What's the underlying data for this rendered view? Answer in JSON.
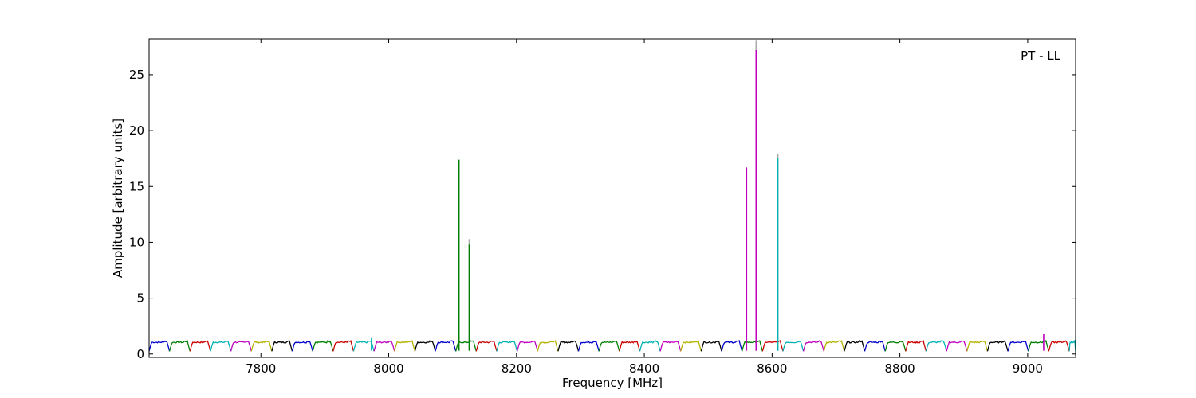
{
  "chart_data": {
    "type": "line",
    "annotation": "PT - LL",
    "xlabel": "Frequency [MHz]",
    "ylabel": "Amplitude [arbitrary units]",
    "xlim": [
      7625,
      9075
    ],
    "ylim": [
      -0.3,
      28.2
    ],
    "xticks": [
      7800,
      8000,
      8200,
      8400,
      8600,
      8800,
      9000
    ],
    "yticks": [
      0,
      5,
      10,
      15,
      20,
      25
    ],
    "grid": false,
    "legend": "none",
    "band_pattern": {
      "start_mhz": 7625,
      "width_mhz": 32,
      "level": 1.05,
      "dip_level": 0.25,
      "colors": [
        "#0000cc",
        "#008000",
        "#cc0000",
        "#00b3b3",
        "#bf00bf",
        "#b3b300",
        "#000000"
      ]
    },
    "spikes": [
      {
        "x": 7973,
        "y": 1.5,
        "color": "#00b3b3"
      },
      {
        "x": 8110,
        "y": 17.4,
        "color": "#008000"
      },
      {
        "x": 8126,
        "y": 10.3,
        "color": "#aaaaaa"
      },
      {
        "x": 8126,
        "y": 9.8,
        "color": "#008000"
      },
      {
        "x": 8560,
        "y": 16.7,
        "color": "#bf00bf"
      },
      {
        "x": 8575,
        "y": 28.1,
        "color": "#aaaaaa"
      },
      {
        "x": 8575,
        "y": 27.2,
        "color": "#bf00bf"
      },
      {
        "x": 8609,
        "y": 17.9,
        "color": "#aaaaaa"
      },
      {
        "x": 8609,
        "y": 17.5,
        "color": "#00b3b3"
      },
      {
        "x": 9025,
        "y": 1.8,
        "color": "#bf00bf"
      }
    ]
  }
}
